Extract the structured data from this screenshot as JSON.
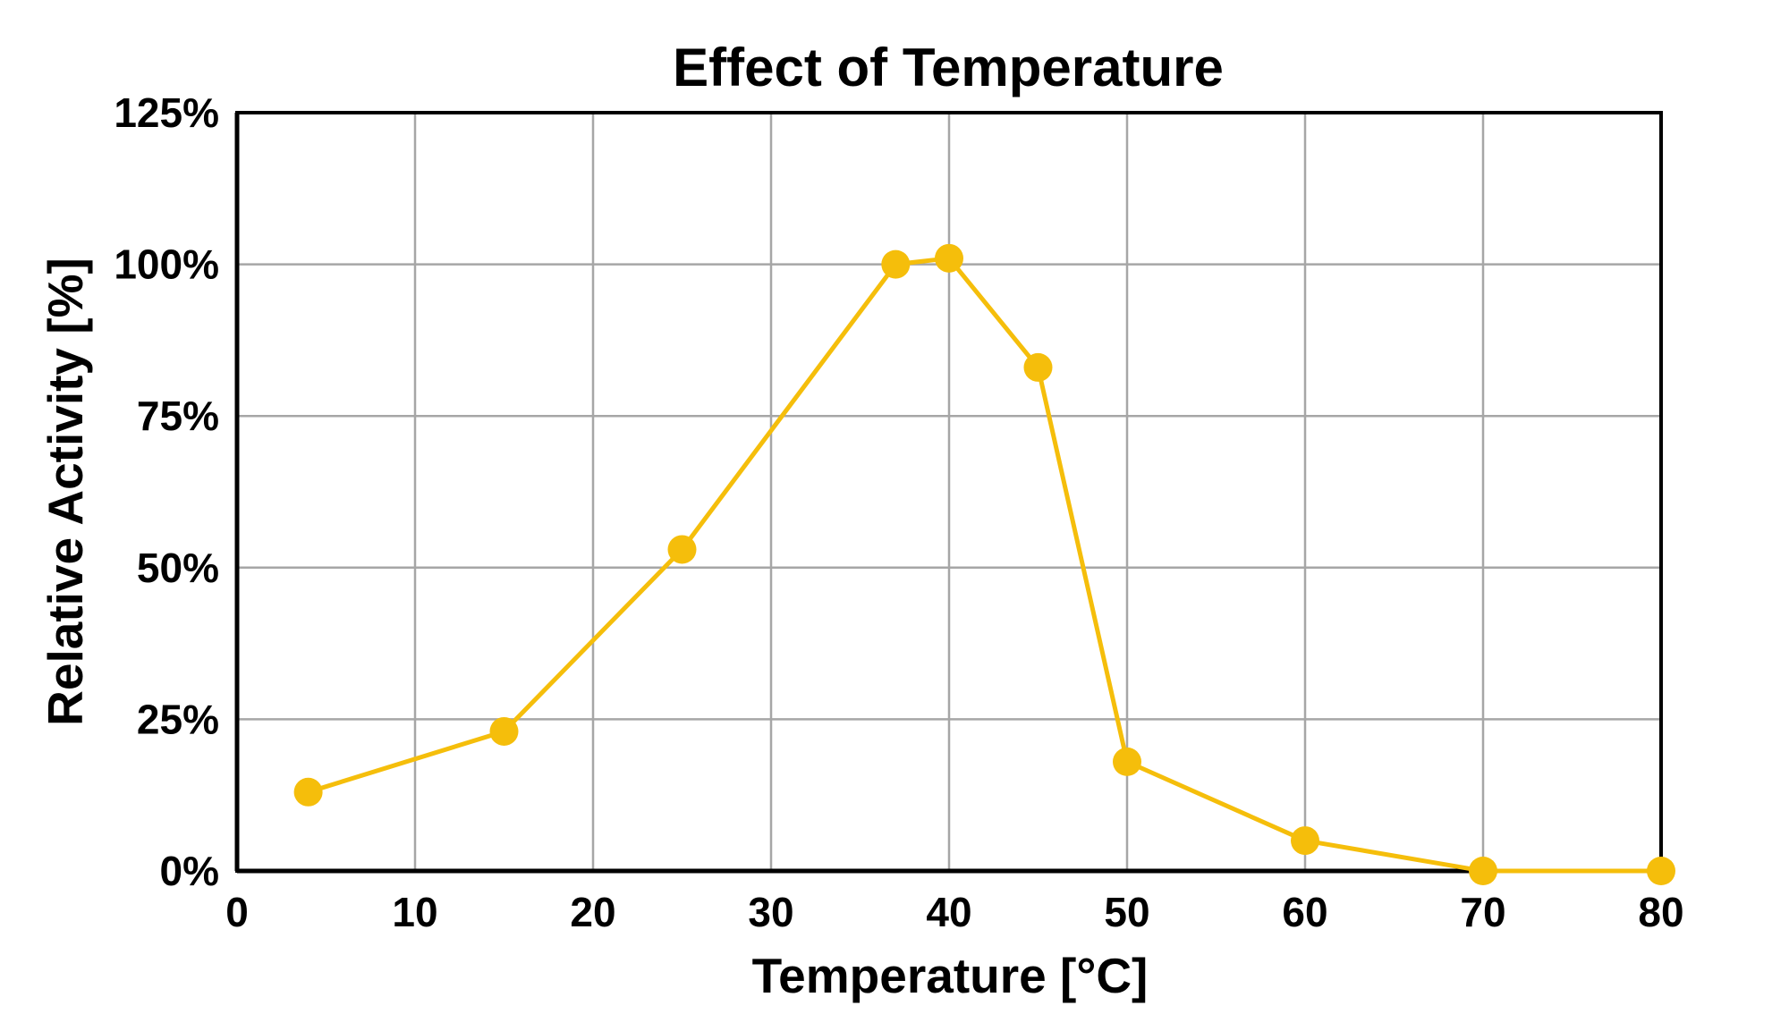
{
  "chart_data": {
    "type": "line",
    "title": "Effect of Temperature",
    "xlabel": "Temperature [°C]",
    "ylabel": "Relative Activity [%]",
    "xlim": [
      0,
      80
    ],
    "ylim": [
      0,
      125
    ],
    "grid": true,
    "x_ticks": [
      0,
      10,
      20,
      30,
      40,
      50,
      60,
      70,
      80
    ],
    "x_tick_labels": [
      "0",
      "10",
      "20",
      "30",
      "40",
      "50",
      "60",
      "70",
      "80"
    ],
    "y_ticks": [
      0,
      25,
      50,
      75,
      100,
      125
    ],
    "y_tick_labels": [
      "0%",
      "25%",
      "50%",
      "75%",
      "100%",
      "125%"
    ],
    "series": [
      {
        "name": "Relative Activity",
        "color": "#F5BE0B",
        "marker": "circle",
        "x": [
          4,
          15,
          25,
          37,
          40,
          45,
          50,
          60,
          70,
          80
        ],
        "y": [
          13,
          23,
          53,
          100,
          101,
          83,
          18,
          5,
          0,
          0
        ]
      }
    ]
  }
}
